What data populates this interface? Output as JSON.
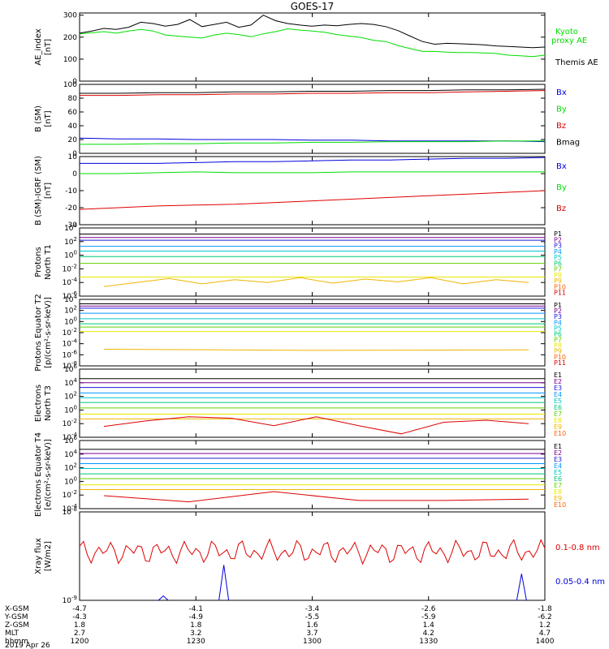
{
  "title": "GOES-17",
  "colors": {
    "black": "#000000",
    "green": "#00dd00",
    "blue": "#0000dd",
    "red": "#dd0000",
    "p": [
      "#000000",
      "#7a0090",
      "#1a1ad8",
      "#0096ff",
      "#00c8c8",
      "#00c878",
      "#60d000",
      "#e8e800",
      "#f0b400",
      "#ff6000",
      "#d00000"
    ]
  },
  "chart_data": [
    {
      "type": "line",
      "ylabel": "AE_index [nT]",
      "yticks": [
        "0",
        "100",
        "200",
        "300"
      ],
      "ylim": [
        0,
        310
      ],
      "series": [
        {
          "name": "Kyoto proxy AE",
          "color": "green",
          "values": [
            215,
            220,
            225,
            218,
            228,
            235,
            228,
            210,
            205,
            200,
            196,
            210,
            218,
            212,
            202,
            215,
            225,
            238,
            232,
            228,
            222,
            212,
            205,
            198,
            186,
            180,
            162,
            148,
            135,
            135,
            132,
            130,
            130,
            128,
            126,
            118,
            115,
            112,
            118
          ]
        },
        {
          "name": "Themis AE",
          "color": "black",
          "values": [
            218,
            228,
            240,
            235,
            245,
            268,
            262,
            250,
            258,
            280,
            248,
            258,
            268,
            245,
            255,
            300,
            275,
            262,
            255,
            250,
            255,
            252,
            258,
            262,
            258,
            248,
            230,
            205,
            180,
            168,
            172,
            170,
            168,
            165,
            160,
            158,
            155,
            152,
            155
          ]
        }
      ]
    },
    {
      "type": "line",
      "ylabel": "B (SM) [nT]",
      "yticks": [
        "0",
        "20",
        "40",
        "60",
        "80",
        "100"
      ],
      "ylim": [
        0,
        100
      ],
      "series": [
        {
          "name": "Bx",
          "color": "blue",
          "values": [
            22,
            21,
            21,
            20,
            20,
            20,
            19,
            19,
            18,
            18,
            18,
            18,
            17
          ]
        },
        {
          "name": "By",
          "color": "green",
          "values": [
            13,
            13,
            14,
            14,
            15,
            15,
            16,
            16,
            17,
            17,
            17,
            18,
            18
          ]
        },
        {
          "name": "Bz",
          "color": "red",
          "values": [
            84,
            84,
            85,
            85,
            86,
            86,
            87,
            87,
            88,
            88,
            89,
            90,
            91
          ]
        },
        {
          "name": "Bmag",
          "color": "black",
          "values": [
            87,
            87,
            88,
            88,
            89,
            89,
            90,
            90,
            91,
            91,
            92,
            92,
            93
          ]
        }
      ]
    },
    {
      "type": "line",
      "ylabel": "B (SM)-IGRF (SM) [nT]",
      "yticks": [
        "-30",
        "-20",
        "-10",
        "0",
        "10"
      ],
      "ylim": [
        -30,
        10
      ],
      "series": [
        {
          "name": "Bx",
          "color": "blue",
          "values": [
            6,
            6,
            6,
            6.5,
            7,
            7,
            7.5,
            8,
            8,
            8.5,
            9,
            9,
            9.5
          ]
        },
        {
          "name": "By",
          "color": "green",
          "values": [
            0,
            0,
            0.5,
            1,
            0.5,
            0.5,
            0.5,
            1,
            1,
            1,
            1,
            1,
            1
          ]
        },
        {
          "name": "Bz",
          "color": "red",
          "values": [
            -21,
            -20,
            -19,
            -18.5,
            -18,
            -17,
            -16,
            -15,
            -14,
            -13,
            -12,
            -11,
            -10
          ]
        }
      ]
    },
    {
      "type": "line",
      "log": true,
      "ylabel": "Protons North T1",
      "yticks": [
        "10^-6",
        "10^-4",
        "10^-2",
        "10^0",
        "10^2",
        "10^4"
      ],
      "ylim": [
        -6,
        4
      ],
      "legend": [
        "P1",
        "P2",
        "P3",
        "P4",
        "P5",
        "P6",
        "P7",
        "P8",
        "P9",
        "P10",
        "P11"
      ],
      "levels": [
        3.1,
        2.6,
        2.2,
        1.3,
        0.6,
        -0.2,
        -1.2,
        -3.2,
        -8,
        -8,
        -8
      ],
      "wiggle": [
        -4.6,
        -4.0,
        -3.4,
        -4.2,
        -3.6,
        -4.0,
        -3.3,
        -4.1,
        -3.5,
        -3.9,
        -3.3,
        -4.2,
        -3.6,
        -4.0
      ]
    },
    {
      "type": "line",
      "log": true,
      "ylabel": "Protons Equator T2 [p/(cm²-s-sr-keV)]",
      "yticks": [
        "10^-8",
        "10^-6",
        "10^-4",
        "10^-2",
        "10^0",
        "10^2",
        "10^4"
      ],
      "ylim": [
        -8,
        4
      ],
      "legend": [
        "P1",
        "P2",
        "P3",
        "P4",
        "P5",
        "P6",
        "P7",
        "P8",
        "P9",
        "P10",
        "P11"
      ],
      "levels": [
        3.2,
        2.8,
        2.4,
        1.5,
        0.5,
        -0.4,
        -1.0,
        -1.8,
        -10,
        -10,
        -10
      ],
      "wiggle": [
        -5.0,
        -5.2,
        -5.1
      ]
    },
    {
      "type": "line",
      "log": true,
      "ylabel": "Electrons North T3",
      "yticks": [
        "10^-4",
        "10^-2",
        "10^0",
        "10^2",
        "10^4",
        "10^6"
      ],
      "ylim": [
        -4,
        6
      ],
      "legend": [
        "E1",
        "E2",
        "E3",
        "E4",
        "E5",
        "E6",
        "E7",
        "E8",
        "E9",
        "E10"
      ],
      "levels": [
        4.6,
        4.0,
        3.3,
        2.5,
        1.8,
        1.1,
        0.3,
        -0.6,
        -1.3,
        -9
      ],
      "wiggle": [
        -2.4,
        -1.6,
        -1.0,
        -1.2,
        -2.3,
        -1.0,
        -2.3,
        -3.5,
        -1.8,
        -1.5,
        -2.0
      ]
    },
    {
      "type": "line",
      "log": true,
      "ylabel": "Electrons Equator T4 [e/(cm²-s-sr-keV)]",
      "yticks": [
        "10^-4",
        "10^-2",
        "10^0",
        "10^2",
        "10^4",
        "10^6"
      ],
      "ylim": [
        -4,
        6
      ],
      "legend": [
        "E1",
        "E2",
        "E3",
        "E4",
        "E5",
        "E6",
        "E7",
        "E8",
        "E9",
        "E10"
      ],
      "levels": [
        4.7,
        4.1,
        3.4,
        2.6,
        1.9,
        1.1,
        0.4,
        -0.5,
        -1.2,
        -9
      ],
      "wiggle": [
        -2.1,
        -3.0,
        -1.5,
        -2.8,
        -2.8,
        -2.6
      ]
    },
    {
      "type": "line",
      "log": true,
      "ylabel": "Xray flux [W/m2]",
      "yticks": [
        "10^-9",
        "10^-8"
      ],
      "ylim": [
        -9,
        -8
      ],
      "series": [
        {
          "name": "0.1-0.8 nm",
          "color": "red"
        },
        {
          "name": "0.05-0.4 nm",
          "color": "blue"
        }
      ]
    }
  ],
  "ephemeris": {
    "labels": [
      "X-GSM",
      "Y-GSM",
      "Z-GSM",
      "MLT",
      "hhmm",
      "2019 Apr 26"
    ],
    "columns": [
      [
        "-4.7",
        "-4.3",
        "1.8",
        "2.7",
        "1200"
      ],
      [
        "-4.1",
        "-4.9",
        "1.8",
        "3.2",
        "1230"
      ],
      [
        "-3.4",
        "-5.5",
        "1.6",
        "3.7",
        "1300"
      ],
      [
        "-2.6",
        "-5.9",
        "1.4",
        "4.2",
        "1330"
      ],
      [
        "-1.8",
        "-6.2",
        "1.2",
        "4.7",
        "1400"
      ]
    ]
  }
}
